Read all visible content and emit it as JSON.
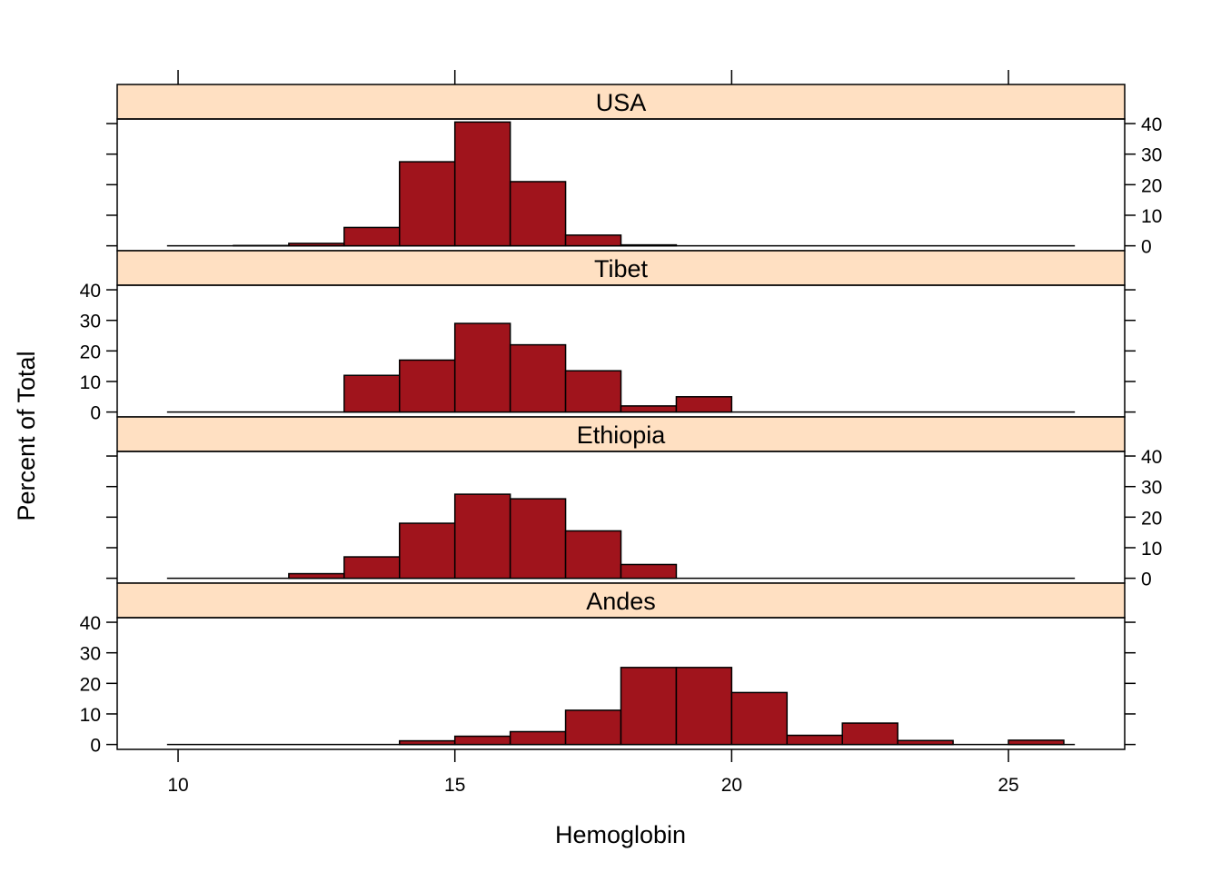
{
  "chart_data": {
    "type": "histogram",
    "xlabel": "Hemoglobin",
    "ylabel": "Percent of Total",
    "xlim": [
      8.9,
      27.1
    ],
    "ylim": [
      -1.6,
      41.5
    ],
    "xticks": [
      10,
      15,
      20,
      25
    ],
    "yticks": [
      0,
      10,
      20,
      30,
      40
    ],
    "bin_edges": [
      10,
      11,
      12,
      13,
      14,
      15,
      16,
      17,
      18,
      19,
      20,
      21,
      22,
      23,
      24,
      25,
      26
    ],
    "bar_color": "#a0141c",
    "strip_color": "#ffe0c2",
    "panels": [
      {
        "name": "USA",
        "values": [
          0,
          0.1,
          0.8,
          6,
          27.5,
          40.5,
          21,
          3.5,
          0.3,
          0,
          0,
          0,
          0,
          0,
          0,
          0
        ]
      },
      {
        "name": "Tibet",
        "values": [
          0,
          0,
          0,
          12,
          17,
          29,
          22,
          13.5,
          2,
          5,
          0,
          0,
          0,
          0,
          0,
          0
        ]
      },
      {
        "name": "Ethiopia",
        "values": [
          0,
          0,
          1.5,
          7,
          18,
          27.5,
          26,
          15.5,
          4.5,
          0,
          0,
          0,
          0,
          0,
          0,
          0
        ]
      },
      {
        "name": "Andes",
        "values": [
          0,
          0,
          0,
          0,
          1.2,
          2.7,
          4.2,
          11.2,
          25.2,
          25.2,
          17,
          3,
          7,
          1.3,
          0,
          1.4
        ]
      }
    ]
  }
}
